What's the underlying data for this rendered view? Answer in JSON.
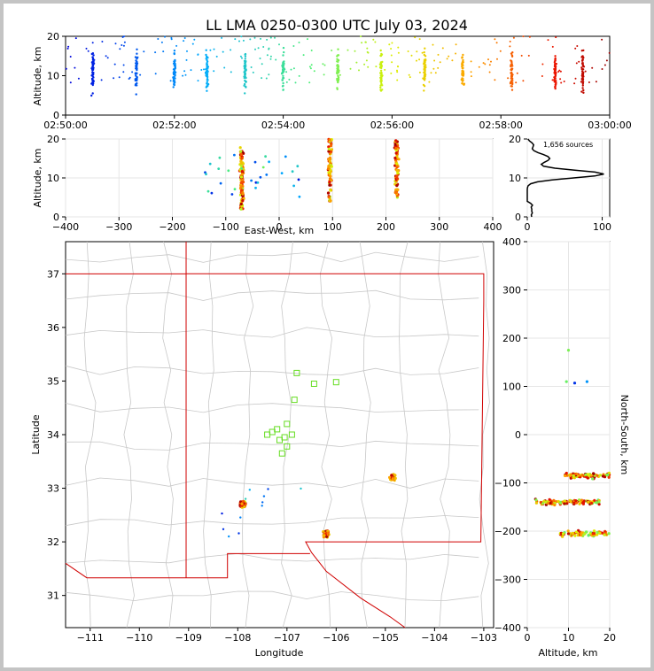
{
  "title": "LL LMA 0250-0300 UTC July 03, 2024",
  "panels": {
    "time_height": {
      "ylabel": "Altitude, km",
      "yticks": [
        "0",
        "10",
        "20"
      ],
      "xticks": [
        "02:50:00",
        "02:52:00",
        "02:54:00",
        "02:56:00",
        "02:58:00",
        "03:00:00"
      ]
    },
    "ew_height": {
      "ylabel": "Altitude, km",
      "xlabel": "East-West, km",
      "yticks": [
        "0",
        "10",
        "20"
      ],
      "xticks": [
        "−400",
        "−300",
        "−200",
        "−100",
        "0",
        "100",
        "200",
        "300",
        "400"
      ]
    },
    "histogram": {
      "annotation": "1,656 sources",
      "yticks": [
        "0",
        "10",
        "20"
      ],
      "xticks": [
        "0",
        "100"
      ]
    },
    "plan_view": {
      "xlabel": "Longitude",
      "ylabel": "Latitude",
      "xticks": [
        "−111",
        "−110",
        "−109",
        "−108",
        "−107",
        "−106",
        "−105",
        "−104",
        "−103"
      ],
      "yticks": [
        "31",
        "32",
        "33",
        "34",
        "35",
        "36",
        "37"
      ]
    },
    "ns_height": {
      "xlabel": "Altitude, km",
      "ylabel": "North-South, km",
      "xticks": [
        "0",
        "10",
        "20"
      ],
      "yticks": [
        "−400",
        "−300",
        "−200",
        "−100",
        "0",
        "100",
        "200",
        "300",
        "400"
      ]
    }
  },
  "chart_data": [
    {
      "type": "scatter",
      "panel": "time_height",
      "x_range": [
        "02:50:00",
        "03:00:00"
      ],
      "ylim": [
        0,
        20
      ],
      "color_encoding": "time (blue to red)",
      "clusters_minutes_after_0250": [
        0.5,
        1.3,
        2.0,
        2.6,
        3.3,
        4.0,
        5.0,
        5.8,
        6.6,
        7.3,
        8.2,
        9.0,
        9.5
      ],
      "source_altitude_range_km": [
        2,
        20
      ]
    },
    {
      "type": "scatter",
      "panel": "ew_height",
      "xlim": [
        -400,
        400
      ],
      "ylim": [
        0,
        20
      ],
      "clusters": [
        {
          "x_km": -70,
          "alt_range_km": [
            2,
            18
          ]
        },
        {
          "x_km": 95,
          "alt_range_km": [
            4,
            20
          ]
        },
        {
          "x_km": 220,
          "alt_range_km": [
            5,
            20
          ]
        }
      ]
    },
    {
      "type": "line",
      "panel": "histogram",
      "xlim": [
        0,
        110
      ],
      "ylim": [
        0,
        20
      ],
      "peak_count": 102,
      "peak_altitude_km": 11,
      "total_sources": 1656
    },
    {
      "type": "scatter",
      "panel": "plan_view",
      "xlim": [
        -111.5,
        -102.8
      ],
      "ylim": [
        30.4,
        37.6
      ],
      "clusters": [
        {
          "lon": -107.9,
          "lat": 32.7
        },
        {
          "lon": -106.2,
          "lat": 32.15
        },
        {
          "lon": -104.85,
          "lat": 33.2
        },
        {
          "lon": -107.1,
          "lat": 34.0
        }
      ]
    },
    {
      "type": "scatter",
      "panel": "ns_height",
      "xlim": [
        0,
        20
      ],
      "ylim": [
        -400,
        400
      ],
      "clusters": [
        {
          "ns_km": -140,
          "alt_range_km": [
            2,
            18
          ]
        },
        {
          "ns_km": -205,
          "alt_range_km": [
            8,
            20
          ]
        },
        {
          "ns_km": -85,
          "alt_range_km": [
            9,
            20
          ]
        }
      ]
    }
  ]
}
